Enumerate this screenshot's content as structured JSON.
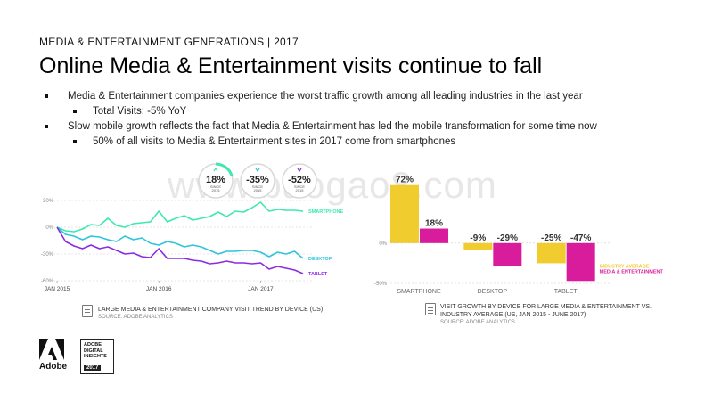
{
  "header": {
    "kicker": "MEDIA & ENTERTAINMENT GENERATIONS | 2017",
    "title": "Online Media & Entertainment visits continue to fall"
  },
  "bullets": [
    {
      "level": 1,
      "text": "Media & Entertainment companies experience the worst traffic growth among all leading industries in the last year"
    },
    {
      "level": 2,
      "text": "Total Visits: -5% YoY"
    },
    {
      "level": 1,
      "text": "Slow mobile growth reflects the fact that Media & Entertainment has led the mobile transformation for some time now"
    },
    {
      "level": 2,
      "text": "50% of all visits to Media & Entertainment sites in 2017 come from smartphones"
    }
  ],
  "watermark": "www.baogao8.com",
  "colors": {
    "smartphone": "#3ee8b0",
    "desktop": "#2ec4dc",
    "tablet": "#8a2be2",
    "industry_average": "#f0cc2e",
    "media_entertainment": "#d91c9b",
    "grid": "#cccccc",
    "axis_text": "#888888"
  },
  "summary_circles": [
    {
      "value": "18%",
      "label1": "SINCE",
      "label2": "2015",
      "arrow": "up-arrow-icon",
      "color": "#3ee8b0",
      "fill": 0.18
    },
    {
      "value": "-35%",
      "label1": "SINCE",
      "label2": "2015",
      "arrow": "down-arrow-icon",
      "color": "#2ec4dc",
      "fill": 0
    },
    {
      "value": "-52%",
      "label1": "SINCE",
      "label2": "2015",
      "arrow": "down-arrow-icon",
      "color": "#8a2be2",
      "fill": 0
    }
  ],
  "chart_data": [
    {
      "type": "line",
      "ylim": [
        -60,
        30
      ],
      "yticks": [
        30,
        0,
        -30,
        -60
      ],
      "ytick_labels": [
        "30%",
        "0%",
        "-30%",
        "-60%"
      ],
      "xlim": [
        0,
        29
      ],
      "xticks": [
        0,
        12,
        24
      ],
      "xtick_labels": [
        "JAN 2015",
        "JAN 2016",
        "JAN 2017"
      ],
      "series": [
        {
          "name": "SMARTPHONE",
          "color": "#3ee8b0",
          "values": [
            0,
            -4,
            -5,
            -2,
            3,
            2,
            10,
            2,
            0,
            4,
            5,
            6,
            18,
            6,
            10,
            13,
            8,
            10,
            12,
            17,
            12,
            18,
            17,
            22,
            28,
            18,
            20,
            19,
            19,
            18
          ]
        },
        {
          "name": "DESKTOP",
          "color": "#2ec4dc",
          "values": [
            0,
            -8,
            -10,
            -14,
            -10,
            -11,
            -14,
            -16,
            -10,
            -14,
            -12,
            -18,
            -20,
            -16,
            -18,
            -22,
            -20,
            -22,
            -26,
            -30,
            -27,
            -27,
            -26,
            -26,
            -28,
            -33,
            -28,
            -30,
            -27,
            -35
          ]
        },
        {
          "name": "TABLET",
          "color": "#8a2be2",
          "values": [
            0,
            -16,
            -21,
            -24,
            -20,
            -24,
            -22,
            -26,
            -30,
            -29,
            -33,
            -34,
            -24,
            -35,
            -35,
            -35,
            -37,
            -38,
            -41,
            -40,
            -38,
            -40,
            -40,
            -41,
            -40,
            -47,
            -44,
            -46,
            -48,
            -52
          ]
        }
      ],
      "caption": "LARGE MEDIA & ENTERTAINMENT COMPANY VISIT TREND BY DEVICE (US)",
      "source": "SOURCE: ADOBE ANALYTICS"
    },
    {
      "type": "bar",
      "ylim": [
        -50,
        75
      ],
      "yticks": [
        0,
        -50
      ],
      "ytick_labels": [
        "0%",
        "-50%"
      ],
      "categories": [
        "SMARTPHONE",
        "DESKTOP",
        "TABLET"
      ],
      "series": [
        {
          "name": "INDUSTRY AVERAGE",
          "color": "#f0cc2e",
          "values": [
            72,
            -9,
            -25
          ],
          "labels": [
            "72%",
            "-9%",
            "-25%"
          ]
        },
        {
          "name": "MEDIA & ENTERTAINMENT",
          "color": "#d91c9b",
          "values": [
            18,
            -29,
            -47
          ],
          "labels": [
            "18%",
            "-29%",
            "-47%"
          ]
        }
      ],
      "legend_position": "right",
      "caption_line1": "VISIT GROWTH BY DEVICE FOR LARGE MEDIA & ENTERTAINMENT VS.",
      "caption_line2": "INDUSTRY AVERAGE (US, JAN 2015 - JUNE 2017)",
      "source": "SOURCE: ADOBE ANALYTICS"
    }
  ],
  "footer": {
    "logo_text": "Adobe",
    "badge_line1": "ADOBE",
    "badge_line2": "DIGITAL",
    "badge_line3": "INSIGHTS",
    "badge_year": "2017"
  }
}
